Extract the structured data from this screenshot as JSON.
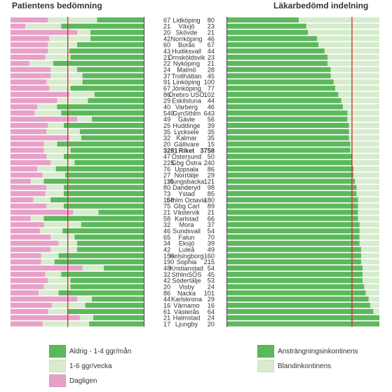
{
  "chart_data": {
    "type": "bar",
    "left_panel": {
      "title": "Patientens bedömning",
      "x_axis": "reversed",
      "xlim": [
        0,
        100
      ],
      "ticks": [
        "100%",
        "75",
        "50",
        "25",
        "0"
      ],
      "reference_line": 57,
      "series": [
        {
          "name": "Aldrig - 1-4 ggr/mån",
          "color": "#5cb85c"
        },
        {
          "name": "1-6 ggr/vecka",
          "color": "#d6eccd"
        },
        {
          "name": "Dagligen",
          "color": "#e8a0c8"
        }
      ]
    },
    "right_panel": {
      "title": "Läkarbedömd indelning",
      "xlim": [
        0,
        100
      ],
      "ticks": [
        "0",
        "25",
        "50",
        "75",
        "100%"
      ],
      "reference_line": 82,
      "series": [
        {
          "name": "Ansträngningsinkontinens",
          "color": "#5cb85c"
        },
        {
          "name": "Blandinkontinens",
          "color": "#d6eccd"
        }
      ]
    },
    "rows": [
      {
        "left_n": "67",
        "name": "Lidköping",
        "right_n": "80",
        "aldrig": 35,
        "vecka": 37,
        "daglig": 28,
        "anstr": 47
      },
      {
        "left_n": "21",
        "name": "Växjö",
        "right_n": "23",
        "aldrig": 62,
        "vecka": 27,
        "daglig": 11,
        "anstr": 52
      },
      {
        "left_n": "20",
        "name": "Skövde",
        "right_n": "21",
        "aldrig": 40,
        "vecka": 10,
        "daglig": 50,
        "anstr": 53
      },
      {
        "left_n": "42",
        "name": "Norrköping",
        "right_n": "46",
        "aldrig": 40,
        "vecka": 31,
        "daglig": 29,
        "anstr": 59
      },
      {
        "left_n": "60",
        "name": "Borås",
        "right_n": "67",
        "aldrig": 50,
        "vecka": 22,
        "daglig": 28,
        "anstr": 60
      },
      {
        "left_n": "43",
        "name": "Hudiksvall",
        "right_n": "44",
        "aldrig": 56,
        "vecka": 16,
        "daglig": 28,
        "anstr": 64
      },
      {
        "left_n": "21",
        "name": "Örnsköldsvik",
        "right_n": "23",
        "aldrig": 55,
        "vecka": 19,
        "daglig": 26,
        "anstr": 66
      },
      {
        "left_n": "22",
        "name": "Nyköping",
        "right_n": "21",
        "aldrig": 68,
        "vecka": 18,
        "daglig": 14,
        "anstr": 66
      },
      {
        "left_n": "24",
        "name": "Malmö",
        "right_n": "28",
        "aldrig": 50,
        "vecka": 20,
        "daglig": 30,
        "anstr": 68
      },
      {
        "left_n": "37",
        "name": "Trollhättan",
        "right_n": "45",
        "aldrig": 46,
        "vecka": 24,
        "daglig": 30,
        "anstr": 68
      },
      {
        "left_n": "91",
        "name": "Linköping",
        "right_n": "100",
        "aldrig": 46,
        "vecka": 27,
        "daglig": 27,
        "anstr": 70
      },
      {
        "left_n": "67",
        "name": "Jönköping",
        "right_n": "77",
        "aldrig": 55,
        "vecka": 16,
        "daglig": 29,
        "anstr": 71
      },
      {
        "left_n": "86",
        "name": "Örebro USÖ",
        "right_n": "102",
        "aldrig": 37,
        "vecka": 19,
        "daglig": 44,
        "anstr": 73
      },
      {
        "left_n": "29",
        "name": "Eskilstuna",
        "right_n": "44",
        "aldrig": 42,
        "vecka": 23,
        "daglig": 35,
        "anstr": 75
      },
      {
        "left_n": "40",
        "name": "Varberg",
        "right_n": "46",
        "aldrig": 65,
        "vecka": 15,
        "daglig": 20,
        "anstr": 76
      },
      {
        "left_n": "540",
        "name": "GynSthlm",
        "right_n": "643",
        "aldrig": 62,
        "vecka": 20,
        "daglig": 18,
        "anstr": 79
      },
      {
        "left_n": "49",
        "name": "Gävle",
        "right_n": "56",
        "aldrig": 39,
        "vecka": 11,
        "daglig": 50,
        "anstr": 79
      },
      {
        "left_n": "25",
        "name": "Huddinge",
        "right_n": "39",
        "aldrig": 60,
        "vecka": 12,
        "daglig": 28,
        "anstr": 80
      },
      {
        "left_n": "35",
        "name": "Lycksele",
        "right_n": "35",
        "aldrig": 48,
        "vecka": 25,
        "daglig": 27,
        "anstr": 80
      },
      {
        "left_n": "32",
        "name": "Kalmar",
        "right_n": "35",
        "aldrig": 47,
        "vecka": 9,
        "daglig": 44,
        "anstr": 80
      },
      {
        "left_n": "20",
        "name": "Gällivare",
        "right_n": "15",
        "aldrig": 65,
        "vecka": 10,
        "daglig": 25,
        "anstr": 81
      },
      {
        "left_n": "3281",
        "name": "Riket",
        "right_n": "3758",
        "aldrig": 55,
        "vecka": 20,
        "daglig": 25,
        "anstr": 81,
        "bold": true
      },
      {
        "left_n": "47",
        "name": "Östersund",
        "right_n": "50",
        "aldrig": 60,
        "vecka": 13,
        "daglig": 27,
        "anstr": 82
      },
      {
        "left_n": "225",
        "name": "Gbg Östra",
        "right_n": "240",
        "aldrig": 52,
        "vecka": 18,
        "daglig": 30,
        "anstr": 82
      },
      {
        "left_n": "76",
        "name": "Uppsala",
        "right_n": "86",
        "aldrig": 66,
        "vecka": 14,
        "daglig": 20,
        "anstr": 83
      },
      {
        "left_n": "27",
        "name": "Norrtälje",
        "right_n": "29",
        "aldrig": 59,
        "vecka": 17,
        "daglig": 24,
        "anstr": 83
      },
      {
        "left_n": "113",
        "name": "Kungsbacka",
        "right_n": "121",
        "aldrig": 75,
        "vecka": 10,
        "daglig": 15,
        "anstr": 84
      },
      {
        "left_n": "80",
        "name": "Danderyd",
        "right_n": "98",
        "aldrig": 60,
        "vecka": 13,
        "daglig": 27,
        "anstr": 85
      },
      {
        "left_n": "73",
        "name": "Ystad",
        "right_n": "85",
        "aldrig": 60,
        "vecka": 14,
        "daglig": 26,
        "anstr": 85
      },
      {
        "left_n": "168",
        "name": "Sthlm Octavia",
        "right_n": "180",
        "aldrig": 70,
        "vecka": 13,
        "daglig": 17,
        "anstr": 86
      },
      {
        "left_n": "75",
        "name": "Gbg Carl",
        "right_n": "89",
        "aldrig": 60,
        "vecka": 13,
        "daglig": 27,
        "anstr": 86
      },
      {
        "left_n": "21",
        "name": "Västervik",
        "right_n": "21",
        "aldrig": 34,
        "vecka": 19,
        "daglig": 47,
        "anstr": 86
      },
      {
        "left_n": "58",
        "name": "Karlstad",
        "right_n": "66",
        "aldrig": 75,
        "vecka": 10,
        "daglig": 15,
        "anstr": 86
      },
      {
        "left_n": "32",
        "name": "Mora",
        "right_n": "37",
        "aldrig": 47,
        "vecka": 28,
        "daglig": 25,
        "anstr": 87
      },
      {
        "left_n": "46",
        "name": "Sundsvall",
        "right_n": "54",
        "aldrig": 61,
        "vecka": 17,
        "daglig": 22,
        "anstr": 87
      },
      {
        "left_n": "65",
        "name": "Falun",
        "right_n": "70",
        "aldrig": 52,
        "vecka": 18,
        "daglig": 30,
        "anstr": 87
      },
      {
        "left_n": "34",
        "name": "Eksjö",
        "right_n": "39",
        "aldrig": 50,
        "vecka": 14,
        "daglig": 36,
        "anstr": 87
      },
      {
        "left_n": "42",
        "name": "Luleå",
        "right_n": "49",
        "aldrig": 50,
        "vecka": 20,
        "daglig": 30,
        "anstr": 88
      },
      {
        "left_n": "156",
        "name": "Helsingborg",
        "right_n": "160",
        "aldrig": 64,
        "vecka": 13,
        "daglig": 23,
        "anstr": 88
      },
      {
        "left_n": "190",
        "name": "Sophia",
        "right_n": "215",
        "aldrig": 67,
        "vecka": 10,
        "daglig": 23,
        "anstr": 88
      },
      {
        "left_n": "48",
        "name": "Kristianstad",
        "right_n": "54",
        "aldrig": 30,
        "vecka": 16,
        "daglig": 54,
        "anstr": 89
      },
      {
        "left_n": "32",
        "name": "SthlmSÖS",
        "right_n": "45",
        "aldrig": 62,
        "vecka": 12,
        "daglig": 26,
        "anstr": 89
      },
      {
        "left_n": "42",
        "name": "Södertälje",
        "right_n": "53",
        "aldrig": 55,
        "vecka": 17,
        "daglig": 28,
        "anstr": 89
      },
      {
        "left_n": "20",
        "name": "Visby",
        "right_n": "24",
        "aldrig": 55,
        "vecka": 20,
        "daglig": 25,
        "anstr": 90
      },
      {
        "left_n": "86",
        "name": "Nacka",
        "right_n": "101",
        "aldrig": 64,
        "vecka": 15,
        "daglig": 21,
        "anstr": 91
      },
      {
        "left_n": "44",
        "name": "Karlskrona",
        "right_n": "29",
        "aldrig": 39,
        "vecka": 11,
        "daglig": 50,
        "anstr": 93
      },
      {
        "left_n": "16",
        "name": "Värnamo",
        "right_n": "16",
        "aldrig": 44,
        "vecka": 25,
        "daglig": 31,
        "anstr": 94
      },
      {
        "left_n": "61",
        "name": "Västerås",
        "right_n": "64",
        "aldrig": 57,
        "vecka": 15,
        "daglig": 28,
        "anstr": 96
      },
      {
        "left_n": "21",
        "name": "Halmstad",
        "right_n": "24",
        "aldrig": 38,
        "vecka": 10,
        "daglig": 52,
        "anstr": 100
      },
      {
        "left_n": "17",
        "name": "Ljungby",
        "right_n": "20",
        "aldrig": 41,
        "vecka": 35,
        "daglig": 24,
        "anstr": 100
      }
    ]
  },
  "legend": {
    "left": [
      {
        "label": "Aldrig - 1-4 ggr/mån",
        "color": "#5cb85c"
      },
      {
        "label": "1-6 ggr/vecka",
        "color": "#d6eccd"
      },
      {
        "label": "Dagligen",
        "color": "#e8a0c8"
      }
    ],
    "right": [
      {
        "label": "Ansträngningsinkontinens",
        "color": "#5cb85c"
      },
      {
        "label": "Blandinkontinens",
        "color": "#d6eccd"
      }
    ]
  }
}
